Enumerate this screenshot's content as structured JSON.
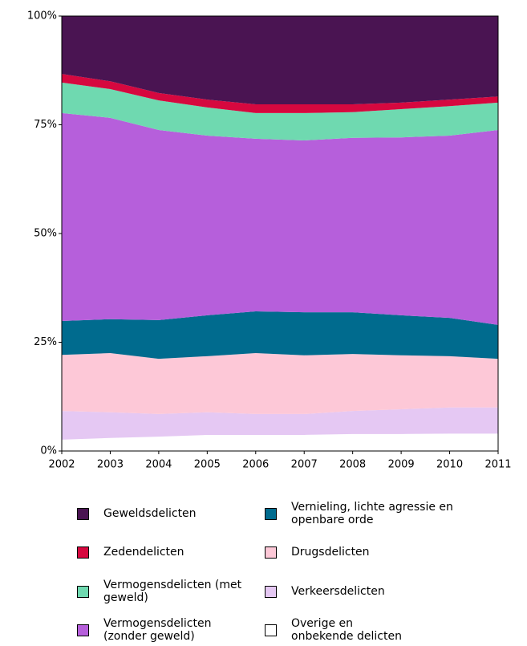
{
  "chart_data": {
    "type": "stacked_area",
    "categories": [
      "2002",
      "2003",
      "2004",
      "2005",
      "2006",
      "2007",
      "2008",
      "2009",
      "2010",
      "2011"
    ],
    "ylim": [
      0,
      100
    ],
    "yticks": [
      {
        "value": 0,
        "label": "0%"
      },
      {
        "value": 25,
        "label": "25%"
      },
      {
        "value": 50,
        "label": "50%"
      },
      {
        "value": 75,
        "label": "75%"
      },
      {
        "value": 100,
        "label": "100%"
      }
    ],
    "series": [
      {
        "name": "Overige en onbekende delicten",
        "color": "#ffffff",
        "values": [
          2.6,
          3,
          3.3,
          3.7,
          3.7,
          3.7,
          3.9,
          3.9,
          4,
          4
        ]
      },
      {
        "name": "Verkeersdelicten",
        "color": "#e5c8f3",
        "values": [
          6.6,
          5.9,
          5.2,
          5.2,
          4.8,
          4.8,
          5.3,
          5.7,
          6,
          6
        ]
      },
      {
        "name": "Drugsdelicten",
        "color": "#fdc8d7",
        "values": [
          12.9,
          13.6,
          12.7,
          12.9,
          14,
          13.5,
          13.1,
          12.4,
          11.8,
          11.2
        ]
      },
      {
        "name": "Vernieling, lichte agressie en openbare orde",
        "color": "#006b8e",
        "values": [
          7.8,
          7.8,
          8.9,
          9.4,
          9.6,
          9.9,
          9.6,
          9.2,
          8.8,
          7.8
        ]
      },
      {
        "name": "Vermogensdelicten (zonder geweld)",
        "color": "#b65fdb",
        "values": [
          47.8,
          46.3,
          43.7,
          41.3,
          39.7,
          39.5,
          40.1,
          40.9,
          41.9,
          44.8
        ]
      },
      {
        "name": "Vermogensdelicten (met geweld)",
        "color": "#6fd9b0",
        "values": [
          7,
          6.6,
          6.8,
          6.5,
          5.9,
          6.3,
          5.9,
          6.5,
          6.8,
          6.3
        ]
      },
      {
        "name": "Zedendelicten",
        "color": "#d6083f",
        "values": [
          2,
          1.8,
          1.7,
          1.8,
          2,
          2,
          1.8,
          1.5,
          1.5,
          1.4
        ]
      },
      {
        "name": "Geweldsdelicten",
        "color": "#4a1452",
        "values": [
          13.3,
          15,
          17.7,
          19.2,
          20.3,
          20.3,
          20.3,
          19.9,
          19.2,
          18.5
        ]
      }
    ]
  }
}
